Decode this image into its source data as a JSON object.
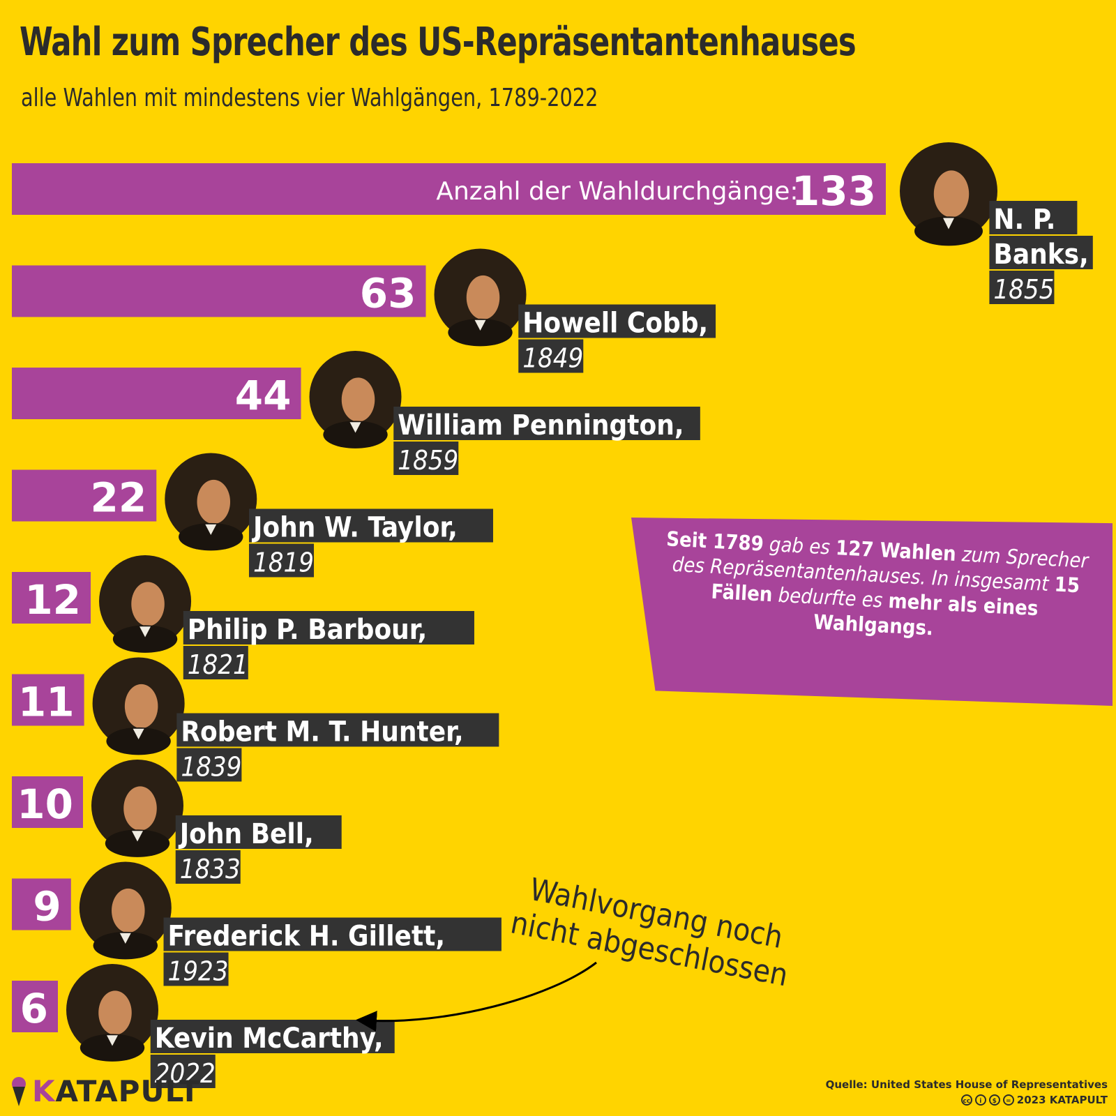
{
  "title": "Wahl zum Sprecher des US-Repräsentantenhauses",
  "subtitle": "alle Wahlen mit mindestens vier Wahlgängen, 1789-2022",
  "chart_data": {
    "type": "bar",
    "orientation": "horizontal",
    "value_prefix": "Anzahl der Wahldurchgänge:",
    "categories": [
      "N. P. Banks, 1855",
      "Howell Cobb, 1849",
      "William Pennington, 1859",
      "John W. Taylor, 1819",
      "Philip P. Barbour, 1821",
      "Robert M. T. Hunter, 1839",
      "John Bell, 1833",
      "Frederick H. Gillett, 1923",
      "Kevin McCarthy, 2022"
    ],
    "values": [
      133,
      63,
      44,
      22,
      12,
      11,
      10,
      9,
      6
    ],
    "labels": [
      {
        "name_lines": [
          "N. P.",
          "Banks,"
        ],
        "year": "1855"
      },
      {
        "name_lines": [
          "Howell Cobb,"
        ],
        "year": "1849"
      },
      {
        "name_lines": [
          "William Pennington,"
        ],
        "year": "1859"
      },
      {
        "name_lines": [
          "John W. Taylor,"
        ],
        "year": "1819"
      },
      {
        "name_lines": [
          "Philip P. Barbour,"
        ],
        "year": "1821"
      },
      {
        "name_lines": [
          "Robert M. T. Hunter,"
        ],
        "year": "1839"
      },
      {
        "name_lines": [
          "John Bell,"
        ],
        "year": "1833"
      },
      {
        "name_lines": [
          "Frederick H. Gillett,"
        ],
        "year": "1923"
      },
      {
        "name_lines": [
          "Kevin McCarthy,"
        ],
        "year": "2022"
      }
    ],
    "colors": {
      "bar": "#A8449A",
      "label_bg": "#333333",
      "portrait_bg": "#2a1f14",
      "background": "#FFD400"
    }
  },
  "info": {
    "seg1": "Seit 1789",
    "seg2": " gab es ",
    "seg3": "127 Wahlen",
    "seg4": " zum Sprecher des Repräsentantenhauses. In insgesamt ",
    "seg5": "15 Fällen",
    "seg6": " bedurfte es ",
    "seg7": "mehr als eines Wahlgangs."
  },
  "note": "Wahlvorgang noch nicht abgeschlossen",
  "footer": {
    "logo": "KATAPULT",
    "logo_first": "K",
    "logo_rest": "ATAPULT",
    "source": "Quelle: United States House of Representatives",
    "copyright": "2023 KATAPULT",
    "license_icons": [
      "cc",
      "i",
      "$",
      "="
    ]
  }
}
